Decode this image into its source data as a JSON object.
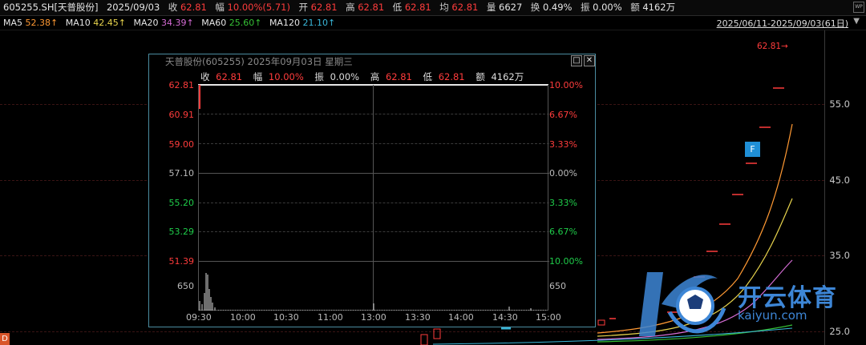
{
  "quote_bar": {
    "symbol": "605255.SH[天普股份]",
    "date": "2025/09/03",
    "close_label": "收",
    "close_value": "62.81",
    "change_label": "幅",
    "change_value": "10.00%(5.71)",
    "open_label": "开",
    "open_value": "62.81",
    "high_label": "高",
    "high_value": "62.81",
    "low_label": "低",
    "low_value": "62.81",
    "avg_label": "均",
    "avg_value": "62.81",
    "volume_label": "量",
    "volume_value": "6627",
    "turnover_label": "换",
    "turnover_value": "0.49%",
    "amplitude_label": "振",
    "amplitude_value": "0.00%",
    "amount_label": "额",
    "amount_value": "4162万"
  },
  "ma_bar": [
    {
      "name": "MA5",
      "value": "52.38↑"
    },
    {
      "name": "MA10",
      "value": "42.45↑"
    },
    {
      "name": "MA20",
      "value": "34.39↑"
    },
    {
      "name": "MA60",
      "value": "25.60↑"
    },
    {
      "name": "MA120",
      "value": "21.10↑"
    }
  ],
  "range_label": "2025/06/11-2025/09/03(61日)",
  "range_arrow": "▼",
  "badge_wp": "WP",
  "main_chart": {
    "last_price_label": "62.81→",
    "y_labels": [
      "55.0",
      "45.0",
      "35.0",
      "25.0"
    ],
    "f_badge": "F",
    "d_badge": "D",
    "colors": {
      "ma5": "#ff9933",
      "ma10": "#e8d44d",
      "ma20": "#d46cd4",
      "ma60": "#35c035",
      "ma120": "#39b7d9",
      "up": "#ff3c3c"
    }
  },
  "popup": {
    "title": "天普股份(605255) 2025年09月03日 星期三",
    "restore_icon": "□",
    "close_icon": "✕",
    "info": {
      "close_label": "收",
      "close_value": "62.81",
      "change_label": "幅",
      "change_value": "10.00%",
      "amp_label": "振",
      "amp_value": "0.00%",
      "high_label": "高",
      "high_value": "62.81",
      "low_label": "低",
      "low_value": "62.81",
      "amount_label": "额",
      "amount_value": "4162万"
    },
    "left_axis": [
      "62.81",
      "60.91",
      "59.00",
      "57.10",
      "55.20",
      "53.29",
      "51.39",
      "650"
    ],
    "right_axis": [
      "10.00%",
      "6.67%",
      "3.33%",
      "0.00%",
      "3.33%",
      "6.67%",
      "10.00%",
      "650"
    ],
    "x_ticks": [
      "09:30",
      "10:00",
      "10:30",
      "11:00",
      "13:00",
      "13:30",
      "14:00",
      "14:30",
      "15:00"
    ]
  },
  "watermark": {
    "brand": "开云体育",
    "url": "kaiyun.com"
  }
}
